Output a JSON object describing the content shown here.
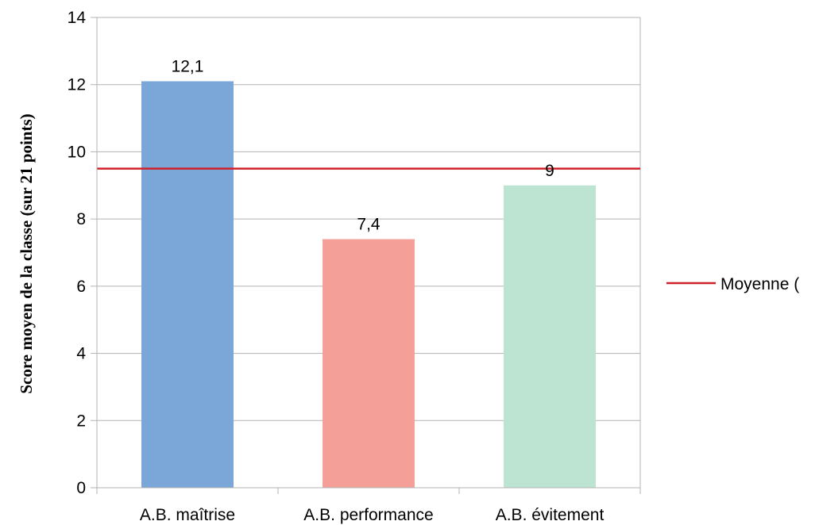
{
  "chart_data": {
    "type": "bar",
    "categories": [
      "A.B. maîtrise",
      "A.B. performance",
      "A.B. évitement"
    ],
    "values": [
      12.1,
      7.4,
      9
    ],
    "data_labels": [
      "12,1",
      "7,4",
      "9"
    ],
    "bar_colors": [
      "#7aa6d8",
      "#f4a098",
      "#bde3d2"
    ],
    "ylabel": "Score moyen de la classe (sur 21 points)",
    "xlabel": "",
    "ylim": [
      0,
      14
    ],
    "yticks": [
      0,
      2,
      4,
      6,
      8,
      10,
      12,
      14
    ],
    "ytick_labels": [
      "0",
      "2",
      "4",
      "6",
      "8",
      "10",
      "12",
      "14"
    ],
    "grid": true,
    "reference_line": {
      "name": "Moyenne (",
      "value": 9.5,
      "color": "#d0202a"
    },
    "legend": {
      "position": "right",
      "entries": [
        {
          "label": "Moyenne (",
          "color": "#d0202a"
        }
      ]
    }
  }
}
